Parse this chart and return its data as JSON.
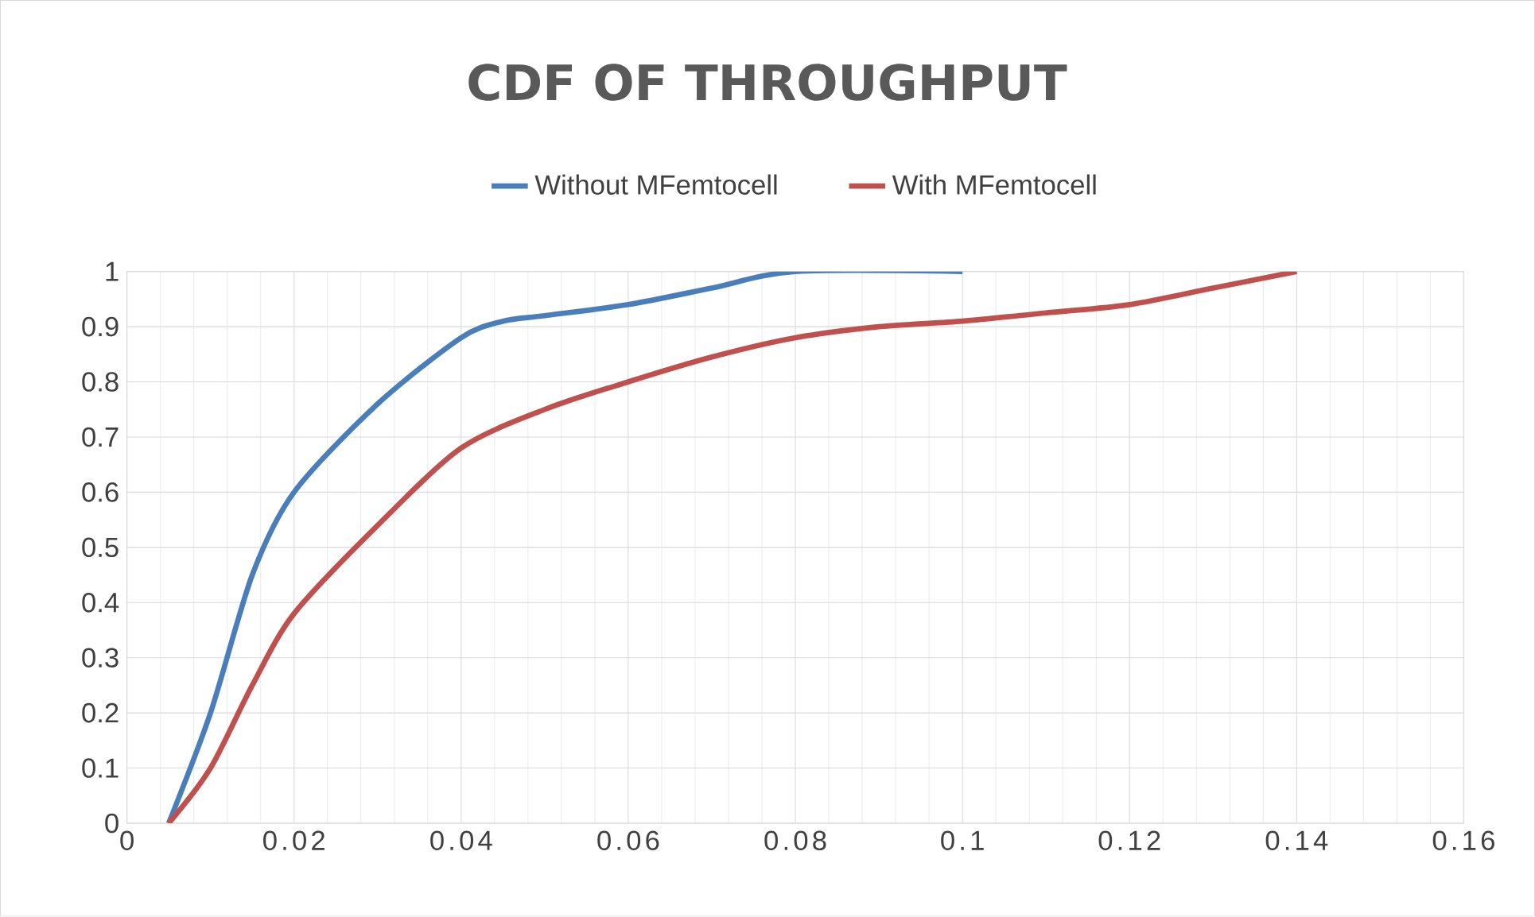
{
  "chart_data": {
    "type": "line",
    "title": "CDF OF THROUGHPUT",
    "xlim": [
      0,
      0.16
    ],
    "xticks": [
      0,
      0.02,
      0.04,
      0.06,
      0.08,
      0.1,
      0.12,
      0.14,
      0.16
    ],
    "ylim": [
      0,
      1
    ],
    "yticks": [
      0,
      0.1,
      0.2,
      0.3,
      0.4,
      0.5,
      0.6,
      0.7,
      0.8,
      0.9,
      1
    ],
    "grid": true,
    "legend": "top",
    "marker": "none",
    "line_style": "solid",
    "series": [
      {
        "name": "Without MFemtocell",
        "color": "#4a7ebb",
        "x": [
          0.005,
          0.01,
          0.015,
          0.02,
          0.03,
          0.04,
          0.045,
          0.05,
          0.06,
          0.07,
          0.08,
          0.1
        ],
        "values": [
          0,
          0.2,
          0.45,
          0.6,
          0.76,
          0.88,
          0.91,
          0.92,
          0.94,
          0.97,
          1,
          1
        ]
      },
      {
        "name": "With MFemtocell",
        "color": "#c0504d",
        "x": [
          0.005,
          0.01,
          0.015,
          0.02,
          0.03,
          0.04,
          0.05,
          0.06,
          0.07,
          0.08,
          0.09,
          0.1,
          0.11,
          0.12,
          0.13,
          0.14
        ],
        "values": [
          0,
          0.1,
          0.25,
          0.38,
          0.54,
          0.68,
          0.75,
          0.8,
          0.845,
          0.88,
          0.9,
          0.91,
          0.925,
          0.94,
          0.97,
          1
        ]
      }
    ]
  }
}
